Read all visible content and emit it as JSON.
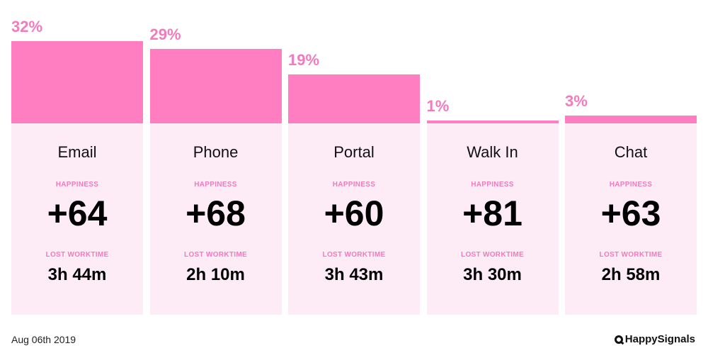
{
  "chart_data": {
    "type": "bar",
    "title": "",
    "xlabel": "",
    "ylabel": "",
    "ylim": [
      0,
      32
    ],
    "categories": [
      "Email",
      "Phone",
      "Portal",
      "Walk In",
      "Chat"
    ],
    "series": [
      {
        "values": [
          32,
          29,
          19,
          1,
          3
        ]
      }
    ],
    "value_labels": [
      "32%",
      "29%",
      "19%",
      "1%",
      "3%"
    ],
    "happiness_label": "HAPPINESS",
    "happiness": [
      "+64",
      "+68",
      "+60",
      "+81",
      "+63"
    ],
    "lost_worktime_label": "LOST WORKTIME",
    "lost_worktime": [
      "3h 44m",
      "2h 10m",
      "3h 43m",
      "3h 30m",
      "2h 58m"
    ],
    "colors": {
      "bar": "#ff7ec2",
      "card": "#fdebf5",
      "label": "#f27bbd"
    }
  },
  "footer": {
    "date": "Aug 06th 2019",
    "brand": "HappySignals"
  }
}
